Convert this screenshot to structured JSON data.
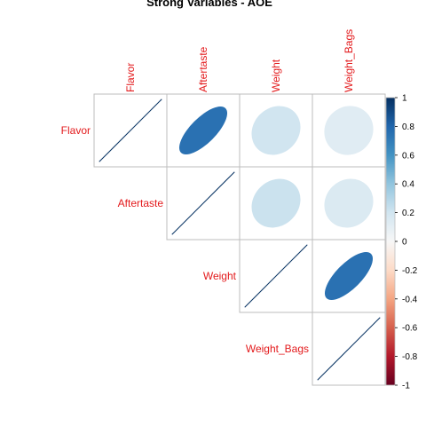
{
  "chart_data": {
    "type": "heatmap",
    "subtype": "correlation-matrix-upper-ellipse",
    "title": "Strong Variables - AOE",
    "variables": [
      "Flavor",
      "Aftertaste",
      "Weight",
      "Weight_Bags"
    ],
    "matrix": [
      [
        1.0,
        0.75,
        0.2,
        0.12
      ],
      [
        0.75,
        1.0,
        0.22,
        0.15
      ],
      [
        0.2,
        0.22,
        1.0,
        0.75
      ],
      [
        0.12,
        0.15,
        0.75,
        1.0
      ]
    ],
    "colorbar": {
      "range": [
        -1,
        1
      ],
      "ticks": [
        "1",
        "0.8",
        "0.6",
        "0.4",
        "0.2",
        "0",
        "-0.2",
        "-0.4",
        "-0.6",
        "-0.8",
        "-1"
      ],
      "colors": [
        "#053061",
        "#2166ac",
        "#4393c3",
        "#92c5de",
        "#d1e5f0",
        "#f7f7f7",
        "#fddbc7",
        "#f4a582",
        "#d6604d",
        "#b2182b",
        "#67001f"
      ],
      "placement": "right"
    },
    "label_color": "#e31a1c",
    "grid": true
  }
}
